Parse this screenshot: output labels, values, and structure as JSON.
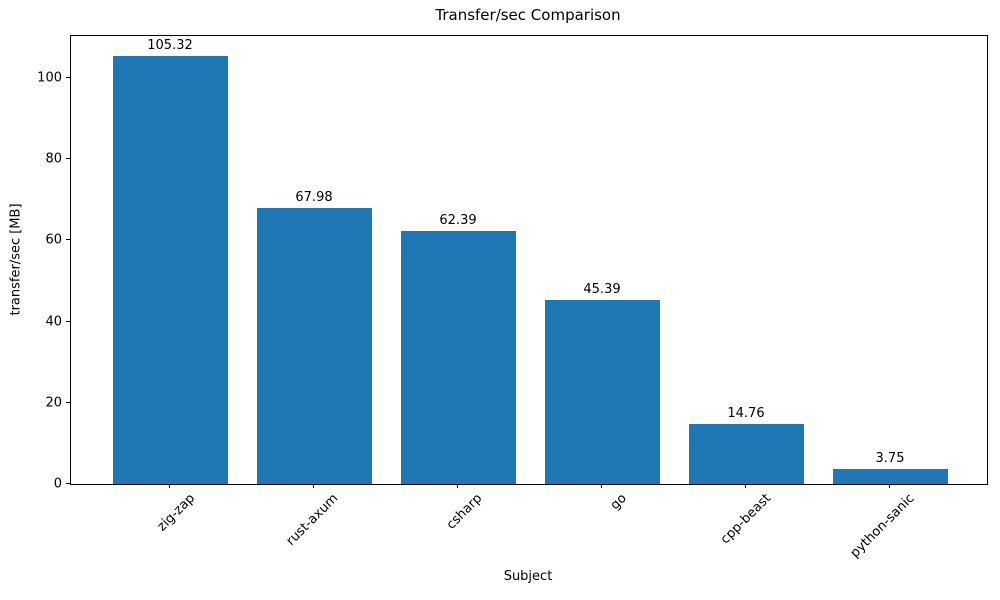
{
  "chart_data": {
    "type": "bar",
    "title": "Transfer/sec Comparison",
    "xlabel": "Subject",
    "ylabel": "transfer/sec [MB]",
    "categories": [
      "zig-zap",
      "rust-axum",
      "csharp",
      "go",
      "cpp-beast",
      "python-sanic"
    ],
    "values": [
      105.32,
      67.98,
      62.39,
      45.39,
      14.76,
      3.75
    ],
    "bar_labels": [
      "105.32",
      "67.98",
      "62.39",
      "45.39",
      "14.76",
      "3.75"
    ],
    "yticks": [
      0,
      20,
      40,
      60,
      80,
      100
    ],
    "ylim": [
      0,
      110.34
    ],
    "bar_color": "#1f77b4",
    "axis_color": "#000000",
    "grid": false,
    "legend": "none"
  }
}
